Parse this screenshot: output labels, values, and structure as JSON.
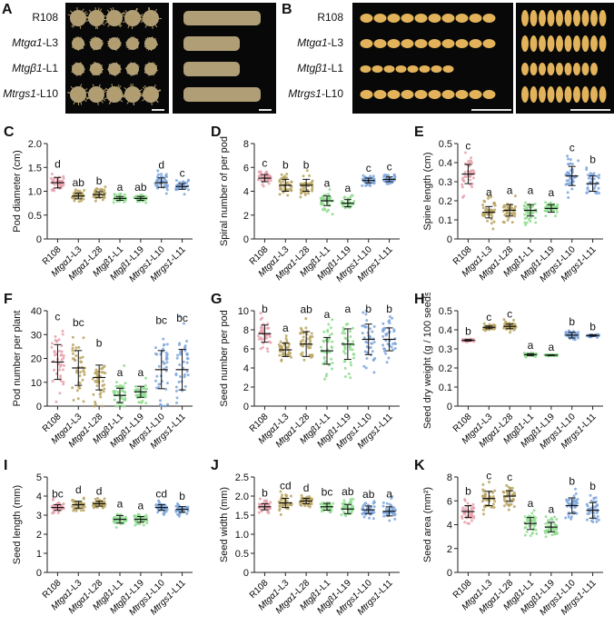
{
  "panels": {
    "A": {
      "letter": "A"
    },
    "B": {
      "letter": "B"
    }
  },
  "genotype_labels": [
    {
      "italic": "",
      "plain": "R108"
    },
    {
      "italic": "Mtgα1",
      "plain": "-L3"
    },
    {
      "italic": "Mtgβ1",
      "plain": "-L1"
    },
    {
      "italic": "Mtrgs1",
      "plain": "-L10"
    }
  ],
  "photo_rows_pods": [
    5,
    5,
    5,
    5
  ],
  "photo_rows_seeds_top": [
    10,
    10,
    8,
    10
  ],
  "photo_rows_seeds_side": [
    10,
    10,
    9,
    10
  ],
  "colors": {
    "R108": "#e8a0ab",
    "Mtga1": "#b9a560",
    "Mtgb1": "#8fdc8f",
    "Mtrgs1": "#7ea6dc",
    "pod_color": "#cdb98a",
    "seed_color": "#e2b35a"
  },
  "chart_data": [
    {
      "panel": "C",
      "type": "scatter",
      "ylabel": "Pod diameter (cm)",
      "ylim": [
        0,
        2.0
      ],
      "yticks": [
        "0",
        "0.5",
        "1.0",
        "1.5",
        "2.0"
      ],
      "categories": [
        "R108",
        "Mtgα1-L3",
        "Mtgα1-L28",
        "Mtgβ1-L1",
        "Mtgβ1-L19",
        "Mtrgs1-L10",
        "Mtrgs1-L11"
      ],
      "mean": [
        1.18,
        0.9,
        0.93,
        0.85,
        0.85,
        1.18,
        1.1
      ],
      "sd": [
        0.11,
        0.06,
        0.06,
        0.04,
        0.04,
        0.1,
        0.06
      ],
      "letters": [
        "d",
        "ab",
        "b",
        "a",
        "ab",
        "d",
        "c"
      ]
    },
    {
      "panel": "D",
      "type": "scatter",
      "ylabel": "Spiral number of per pod",
      "ylim": [
        0,
        8
      ],
      "yticks": [
        "0",
        "2",
        "4",
        "6",
        "8"
      ],
      "categories": [
        "R108",
        "Mtgα1-L3",
        "Mtgα1-L28",
        "Mtgβ1-L1",
        "Mtgβ1-L19",
        "Mtrgs1-L10",
        "Mtrgs1-L11"
      ],
      "mean": [
        5.1,
        4.5,
        4.5,
        3.2,
        3.0,
        4.9,
        5.0
      ],
      "sd": [
        0.3,
        0.5,
        0.5,
        0.4,
        0.3,
        0.2,
        0.2
      ],
      "letters": [
        "c",
        "b",
        "b",
        "a",
        "a",
        "c",
        "c"
      ]
    },
    {
      "panel": "E",
      "type": "scatter",
      "ylabel": "Spine length (cm)",
      "ylim": [
        0,
        0.5
      ],
      "yticks": [
        "0",
        "0.1",
        "0.2",
        "0.3",
        "0.4",
        "0.5"
      ],
      "categories": [
        "R108",
        "Mtgα1-L3",
        "Mtgα1-L28",
        "Mtgβ1-L1",
        "Mtgβ1-L19",
        "Mtrgs1-L10",
        "Mtrgs1-L11"
      ],
      "mean": [
        0.34,
        0.14,
        0.15,
        0.15,
        0.16,
        0.33,
        0.29
      ],
      "sd": [
        0.05,
        0.03,
        0.03,
        0.03,
        0.02,
        0.05,
        0.04
      ],
      "letters": [
        "c",
        "a",
        "a",
        "a",
        "a",
        "c",
        "b"
      ]
    },
    {
      "panel": "F",
      "type": "scatter",
      "ylabel": "Pod number per plant",
      "ylim": [
        0,
        40
      ],
      "yticks": [
        "0",
        "10",
        "20",
        "30",
        "40"
      ],
      "categories": [
        "R108",
        "Mtgα1-L3",
        "Mtgα1-L28",
        "Mtgβ1-L1",
        "Mtgβ1-L19",
        "Mtrgs1-L10",
        "Mtrgs1-L11"
      ],
      "mean": [
        18.5,
        16,
        12,
        4.5,
        6,
        15.3,
        15.3
      ],
      "sd": [
        7.3,
        7.3,
        5.2,
        3,
        2.3,
        8,
        8.5
      ],
      "letters": [
        "c",
        "bc",
        "b",
        "a",
        "a",
        "bc",
        "bc"
      ]
    },
    {
      "panel": "G",
      "type": "scatter",
      "ylabel": "Seed number per pod",
      "ylim": [
        0,
        10
      ],
      "yticks": [
        "0",
        "2",
        "4",
        "6",
        "8",
        "10"
      ],
      "categories": [
        "R108",
        "Mtgα1-L3",
        "Mtgα1-L28",
        "Mtgβ1-L1",
        "Mtgβ1-L19",
        "Mtrgs1-L10",
        "Mtrgs1-L11"
      ],
      "mean": [
        7.6,
        5.9,
        6.5,
        5.8,
        6.5,
        7.0,
        7.0
      ],
      "sd": [
        0.9,
        0.7,
        1.3,
        1.4,
        1.6,
        1.6,
        1.2
      ],
      "letters": [
        "b",
        "a",
        "ab",
        "a",
        "a",
        "b",
        "b"
      ]
    },
    {
      "panel": "H",
      "type": "scatter",
      "ylabel": "Seed dry weight (g / 100 seeds)",
      "ylim": [
        0,
        0.5
      ],
      "yticks": [
        "0",
        "0.1",
        "0.2",
        "0.3",
        "0.4",
        "0.5"
      ],
      "categories": [
        "R108",
        "Mtgα1-L3",
        "Mtgα1-L28",
        "Mtgβ1-L1",
        "Mtgβ1-L19",
        "Mtrgs1-L10",
        "Mtrgs1-L11"
      ],
      "mean": [
        0.345,
        0.413,
        0.418,
        0.27,
        0.267,
        0.372,
        0.37
      ],
      "sd": [
        0.004,
        0.007,
        0.012,
        0.005,
        0.002,
        0.015,
        0.004
      ],
      "letters": [
        "b",
        "c",
        "c",
        "a",
        "a",
        "b",
        "b"
      ]
    },
    {
      "panel": "I",
      "type": "scatter",
      "ylabel": "Seed length (mm)",
      "ylim": [
        0,
        5
      ],
      "yticks": [
        "0",
        "1",
        "2",
        "3",
        "4",
        "5"
      ],
      "categories": [
        "R108",
        "Mtgα1-L3",
        "Mtgα1-L28",
        "Mtgβ1-L1",
        "Mtgβ1-L19",
        "Mtrgs1-L10",
        "Mtrgs1-L11"
      ],
      "mean": [
        3.4,
        3.55,
        3.6,
        2.78,
        2.78,
        3.4,
        3.3
      ],
      "sd": [
        0.15,
        0.18,
        0.13,
        0.2,
        0.15,
        0.15,
        0.15
      ],
      "letters": [
        "bc",
        "d",
        "d",
        "a",
        "a",
        "cd",
        "b"
      ]
    },
    {
      "panel": "J",
      "type": "scatter",
      "ylabel": "Seed width (mm)",
      "ylim": [
        0,
        2.5
      ],
      "yticks": [
        "0",
        "0.5",
        "1.0",
        "1.5",
        "2.0",
        "2.5"
      ],
      "categories": [
        "R108",
        "Mtgα1-L3",
        "Mtgα1-L28",
        "Mtgβ1-L1",
        "Mtgβ1-L19",
        "Mtrgs1-L10",
        "Mtrgs1-L11"
      ],
      "mean": [
        1.72,
        1.82,
        1.87,
        1.72,
        1.66,
        1.64,
        1.6
      ],
      "sd": [
        0.08,
        0.12,
        0.07,
        0.09,
        0.12,
        0.1,
        0.12
      ],
      "letters": [
        "b",
        "cd",
        "d",
        "bc",
        "ab",
        "ab",
        "a"
      ]
    },
    {
      "panel": "K",
      "type": "scatter",
      "ylabel": "Seed area (mm²)",
      "ylim": [
        0,
        8
      ],
      "yticks": [
        "0",
        "2",
        "4",
        "6",
        "8"
      ],
      "categories": [
        "R108",
        "Mtgα1-L3",
        "Mtgα1-L28",
        "Mtgβ1-L1",
        "Mtgβ1-L19",
        "Mtrgs1-L10",
        "Mtrgs1-L11"
      ],
      "mean": [
        5.1,
        6.2,
        6.4,
        4.1,
        3.8,
        5.6,
        5.2
      ],
      "sd": [
        0.5,
        0.6,
        0.45,
        0.5,
        0.4,
        0.65,
        0.65
      ],
      "letters": [
        "b",
        "c",
        "c",
        "a",
        "a",
        "b",
        "b"
      ]
    }
  ]
}
